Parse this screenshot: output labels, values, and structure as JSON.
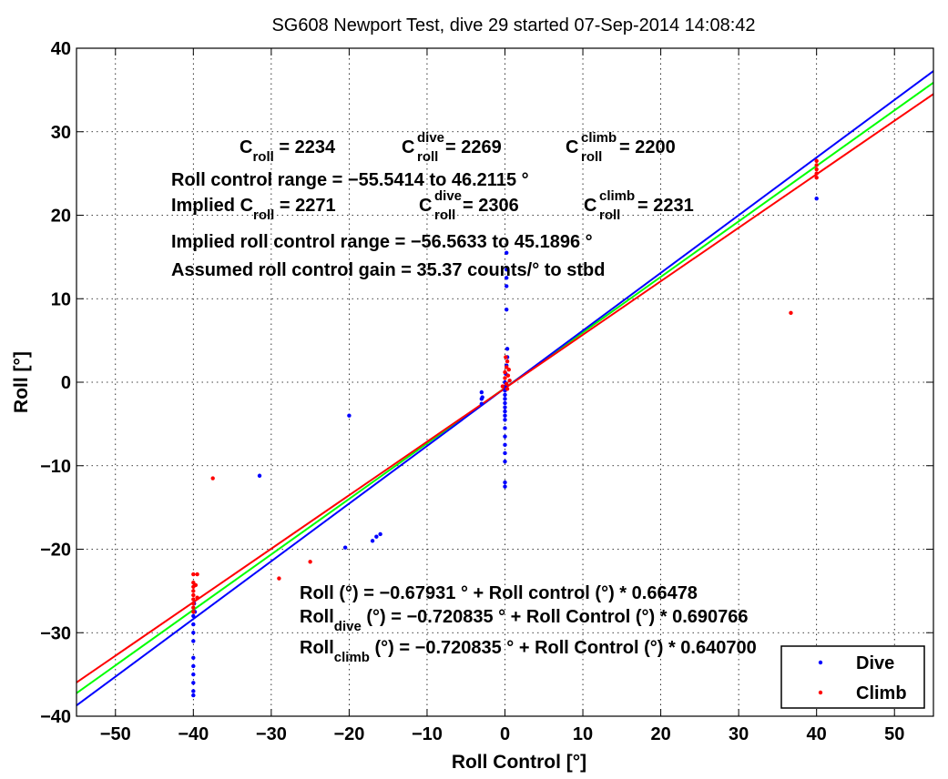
{
  "chart_data": {
    "type": "scatter",
    "title": "SG608 Newport Test, dive 29 started 07-Sep-2014 14:08:42",
    "xlabel": "Roll Control [°]",
    "ylabel": "Roll [°]",
    "xlim": [
      -55,
      55
    ],
    "ylim": [
      -40,
      40
    ],
    "xticks": [
      -50,
      -40,
      -30,
      -20,
      -10,
      0,
      10,
      20,
      30,
      40,
      50
    ],
    "yticks": [
      -40,
      -30,
      -20,
      -10,
      0,
      10,
      20,
      30,
      40
    ],
    "xtick_labels": [
      "−50",
      "−40",
      "−30",
      "−20",
      "−10",
      "0",
      "10",
      "20",
      "30",
      "40",
      "50"
    ],
    "ytick_labels": [
      "−40",
      "−30",
      "−20",
      "−10",
      "0",
      "10",
      "20",
      "30",
      "40"
    ],
    "grid": true,
    "legend_position": "bottom-right",
    "colors": {
      "dive": "#0000ff",
      "climb": "#ff0000",
      "fit": "#00ff00",
      "axes": "#000000"
    },
    "series": [
      {
        "name": "Dive",
        "color": "#0000ff",
        "points": [
          [
            -40,
            -28
          ],
          [
            -40,
            -29
          ],
          [
            -40,
            -30
          ],
          [
            -40,
            -31
          ],
          [
            -40,
            -33
          ],
          [
            -40,
            -34
          ],
          [
            -40,
            -35
          ],
          [
            -40,
            -36
          ],
          [
            -40,
            -37
          ],
          [
            -40,
            -37.5
          ],
          [
            -39.8,
            -27.5
          ],
          [
            -39.9,
            -26.5
          ],
          [
            -31.5,
            -11.2
          ],
          [
            -20,
            -4
          ],
          [
            -20.5,
            -19.8
          ],
          [
            -17,
            -19
          ],
          [
            -16.5,
            -18.5
          ],
          [
            -16,
            -18.2
          ],
          [
            -3,
            -1.2
          ],
          [
            -3,
            -2
          ],
          [
            -3,
            -2.6
          ],
          [
            -2.9,
            -1.8
          ],
          [
            0,
            0
          ],
          [
            0,
            -0.5
          ],
          [
            0,
            -1
          ],
          [
            0,
            -1.5
          ],
          [
            0,
            -2
          ],
          [
            0,
            -2.5
          ],
          [
            0,
            -3
          ],
          [
            0,
            -3.5
          ],
          [
            0,
            -4
          ],
          [
            0,
            -4.5
          ],
          [
            0,
            -5.5
          ],
          [
            0,
            -6.5
          ],
          [
            0,
            -7.5
          ],
          [
            0,
            -8.5
          ],
          [
            0,
            -9.5
          ],
          [
            0,
            -12
          ],
          [
            0,
            -12.5
          ],
          [
            0.1,
            1
          ],
          [
            0.2,
            2
          ],
          [
            0.3,
            3
          ],
          [
            0.3,
            4
          ],
          [
            0.2,
            8.7
          ],
          [
            0.2,
            11.5
          ],
          [
            0.2,
            12.5
          ],
          [
            0.2,
            13.5
          ],
          [
            0.2,
            15.5
          ],
          [
            40,
            22
          ]
        ]
      },
      {
        "name": "Climb",
        "color": "#ff0000",
        "points": [
          [
            -40,
            -23
          ],
          [
            -40,
            -24
          ],
          [
            -40,
            -24.5
          ],
          [
            -40,
            -25
          ],
          [
            -40,
            -25.5
          ],
          [
            -40,
            -26
          ],
          [
            -40,
            -26.5
          ],
          [
            -40,
            -27
          ],
          [
            -40,
            -27.5
          ],
          [
            -39.7,
            -24.3
          ],
          [
            -39.5,
            -25.8
          ],
          [
            -39.5,
            -23
          ],
          [
            -37.5,
            -11.5
          ],
          [
            -29,
            -23.5
          ],
          [
            -25,
            -21.5
          ],
          [
            0,
            0.5
          ],
          [
            0,
            1.2
          ],
          [
            0.2,
            1.8
          ],
          [
            0.3,
            2.5
          ],
          [
            0.1,
            3
          ],
          [
            0.2,
            -0.2
          ],
          [
            0.4,
            0.8
          ],
          [
            0.5,
            1.5
          ],
          [
            0.3,
            -0.8
          ],
          [
            -0.3,
            -0.5
          ],
          [
            0.6,
            0.2
          ],
          [
            40,
            24.5
          ],
          [
            40,
            25
          ],
          [
            40,
            25.5
          ],
          [
            40,
            26
          ],
          [
            40,
            26.5
          ],
          [
            36.7,
            8.3
          ]
        ]
      }
    ],
    "fit_lines": [
      {
        "name": "Roll fit",
        "color": "#00ff00",
        "intercept": -0.67931,
        "slope": 0.66478
      },
      {
        "name": "Roll dive fit",
        "color": "#0000ff",
        "intercept": -0.720835,
        "slope": 0.690766
      },
      {
        "name": "Roll climb fit",
        "color": "#ff0000",
        "intercept": -0.720835,
        "slope": 0.6407
      }
    ],
    "annotations": {
      "c_roll_main": "C",
      "c_roll_sub": "roll",
      "c_roll_value": " = 2234",
      "c_dive_main": "C",
      "c_dive_sup": "dive",
      "c_dive_sub": "roll",
      "c_dive_value": " = 2269",
      "c_climb_main": "C",
      "c_climb_sup": "climb",
      "c_climb_sub": "roll",
      "c_climb_value": " = 2200",
      "range_line": "Roll control range = −55.5414 to 46.2115 °",
      "implied_prefix": "Implied C",
      "implied_sub": "roll",
      "implied_value": " = 2271",
      "implied_dive_main": "C",
      "implied_dive_sup": "dive",
      "implied_dive_sub": "roll",
      "implied_dive_value": " = 2306",
      "implied_climb_main": "C",
      "implied_climb_sup": "climb",
      "implied_climb_sub": "roll",
      "implied_climb_value": " = 2231",
      "implied_range_line": "Implied roll control range = −56.5633 to 45.1896 °",
      "gain_line": "Assumed roll control gain = 35.37 counts/° to stbd",
      "fit_eq": "Roll (°) = −0.67931 ° + Roll control (°) * 0.66478",
      "dive_eq_main": "Roll",
      "dive_eq_sub": "dive",
      "dive_eq_rest": " (°) = −0.720835 ° + Roll Control (°) * 0.690766",
      "climb_eq_main": "Roll",
      "climb_eq_sub": "climb",
      "climb_eq_rest": " (°) = −0.720835 ° + Roll Control (°) * 0.640700"
    },
    "legend": [
      {
        "label": "Dive",
        "color": "#0000ff"
      },
      {
        "label": "Climb",
        "color": "#ff0000"
      }
    ]
  }
}
